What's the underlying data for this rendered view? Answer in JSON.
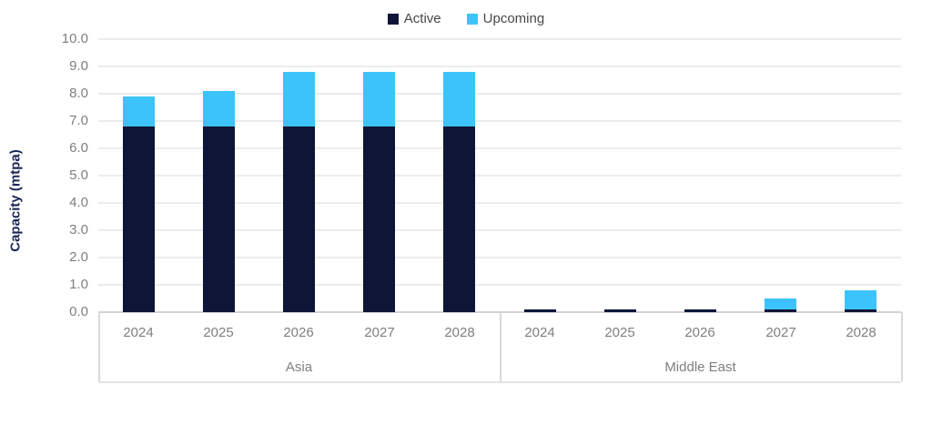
{
  "chart_data": {
    "type": "bar",
    "subtype": "stacked-column",
    "title": "",
    "xlabel": "",
    "ylabel": "Capacity (mtpa)",
    "ylim": [
      0,
      10
    ],
    "ytick_step": 1.0,
    "ytick_labels": [
      "0.0",
      "1.0",
      "2.0",
      "3.0",
      "4.0",
      "5.0",
      "6.0",
      "7.0",
      "8.0",
      "9.0",
      "10.0"
    ],
    "grid": "horizontal",
    "legend_position": "top-center",
    "legend": [
      {
        "name": "Active",
        "color": "#0E1537"
      },
      {
        "name": "Upcoming",
        "color": "#3DC3FC"
      }
    ],
    "groups": [
      {
        "label": "Asia",
        "categories": [
          "2024",
          "2025",
          "2026",
          "2027",
          "2028"
        ],
        "series": [
          {
            "name": "Active",
            "values": [
              6.8,
              6.8,
              6.8,
              6.8,
              6.8
            ]
          },
          {
            "name": "Upcoming",
            "values": [
              1.1,
              1.3,
              2.0,
              2.0,
              2.0
            ]
          }
        ],
        "totals": [
          7.9,
          8.1,
          8.8,
          8.8,
          8.8
        ]
      },
      {
        "label": "Middle East",
        "categories": [
          "2024",
          "2025",
          "2026",
          "2027",
          "2028"
        ],
        "series": [
          {
            "name": "Active",
            "values": [
              0.1,
              0.1,
              0.1,
              0.1,
              0.1
            ]
          },
          {
            "name": "Upcoming",
            "values": [
              0.0,
              0.0,
              0.0,
              0.4,
              0.7
            ]
          }
        ],
        "totals": [
          0.1,
          0.1,
          0.1,
          0.5,
          0.8
        ]
      }
    ],
    "colors": {
      "active": "#0E1537",
      "upcoming": "#3DC3FC",
      "gridline": "#ECECEC",
      "axis_line": "#D2D2D8",
      "tick_label": "#7F7F7F",
      "legend_text": "#474747",
      "axis_title": "#1B2654"
    }
  }
}
